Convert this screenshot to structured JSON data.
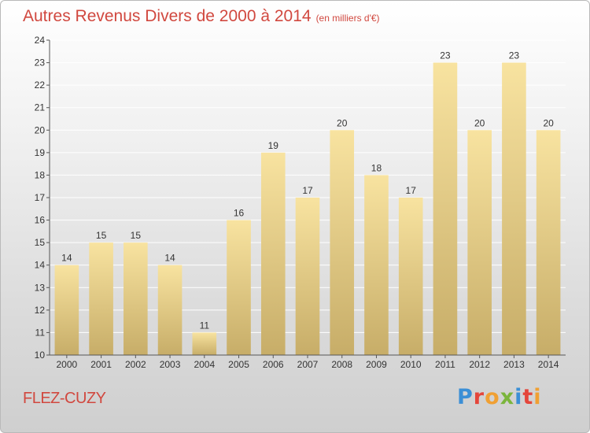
{
  "title": "Autres Revenus Divers de 2000 à 2014",
  "unit": "(en milliers d'€)",
  "location": "FLEZ-CUZY",
  "logo": {
    "text": "Proxiti",
    "colors": [
      "#3b8fd6",
      "#e4463b",
      "#f0a033",
      "#7bb53c",
      "#3b8fd6",
      "#e4463b",
      "#f0a033"
    ]
  },
  "colors": {
    "title": "#d1483f",
    "bar_light": "#f8e3a0",
    "bar_dark": "#c7ad68",
    "grid": "#ffffff",
    "axis": "#555555"
  },
  "chart_data": {
    "type": "bar",
    "categories": [
      "2000",
      "2001",
      "2002",
      "2003",
      "2004",
      "2005",
      "2006",
      "2007",
      "2008",
      "2009",
      "2010",
      "2011",
      "2012",
      "2013",
      "2014"
    ],
    "values": [
      14,
      15,
      15,
      14,
      11,
      16,
      19,
      17,
      20,
      18,
      17,
      23,
      20,
      23,
      20
    ],
    "data_labels": [
      "14",
      "15",
      "15",
      "14",
      "11",
      "16",
      "19",
      "17",
      "20",
      "18",
      "17",
      "23",
      "20",
      "23",
      "20"
    ],
    "ylim": [
      10,
      24
    ],
    "yticks": [
      10,
      11,
      12,
      13,
      14,
      15,
      16,
      17,
      18,
      19,
      20,
      21,
      22,
      23,
      24
    ],
    "grid": true
  }
}
